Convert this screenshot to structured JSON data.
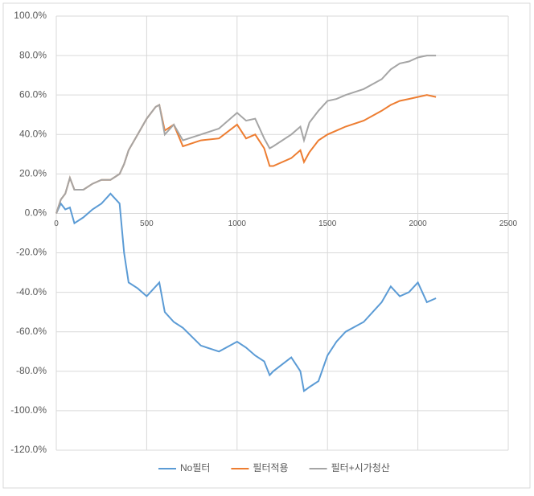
{
  "chart_data": {
    "type": "line",
    "x": [
      0,
      25,
      50,
      75,
      100,
      150,
      200,
      250,
      300,
      350,
      375,
      400,
      450,
      500,
      550,
      570,
      600,
      650,
      700,
      800,
      900,
      1000,
      1050,
      1100,
      1150,
      1180,
      1200,
      1300,
      1350,
      1370,
      1400,
      1450,
      1500,
      1550,
      1600,
      1700,
      1800,
      1850,
      1900,
      1950,
      2000,
      2050,
      2100
    ],
    "series": [
      {
        "name": "No필터",
        "color": "#5b9bd5",
        "values": [
          0,
          5,
          2,
          3,
          -5,
          -2,
          2,
          5,
          10,
          5,
          -20,
          -35,
          -38,
          -42,
          -37,
          -35,
          -50,
          -55,
          -58,
          -67,
          -70,
          -65,
          -68,
          -72,
          -75,
          -82,
          -80,
          -73,
          -80,
          -90,
          -88,
          -85,
          -72,
          -65,
          -60,
          -55,
          -45,
          -37,
          -42,
          -40,
          -35,
          -45,
          -43
        ]
      },
      {
        "name": "필터적용",
        "color": "#ed7d31",
        "values": [
          0,
          7,
          10,
          18,
          12,
          12,
          15,
          17,
          17,
          20,
          25,
          32,
          40,
          48,
          54,
          55,
          42,
          45,
          34,
          37,
          38,
          45,
          38,
          40,
          33,
          24,
          24,
          28,
          32,
          26,
          31,
          37,
          40,
          42,
          44,
          47,
          52,
          55,
          57,
          58,
          59,
          60,
          59
        ]
      },
      {
        "name": "필터+시가청산",
        "color": "#a5a5a5",
        "values": [
          0,
          7,
          10,
          18,
          12,
          12,
          15,
          17,
          17,
          20,
          25,
          32,
          40,
          48,
          54,
          55,
          40,
          45,
          37,
          40,
          43,
          51,
          47,
          48,
          38,
          33,
          34,
          40,
          44,
          37,
          46,
          52,
          57,
          58,
          60,
          63,
          68,
          73,
          76,
          77,
          79,
          80,
          80
        ]
      }
    ],
    "xlim": [
      0,
      2500
    ],
    "xticks": [
      0,
      500,
      1000,
      1500,
      2000,
      2500
    ],
    "ylim": [
      -120,
      100
    ],
    "yticks": [
      {
        "value": -120,
        "label": "-120.0%"
      },
      {
        "value": -100,
        "label": "-100.0%"
      },
      {
        "value": -80,
        "label": "-80.0%"
      },
      {
        "value": -60,
        "label": "-60.0%"
      },
      {
        "value": -40,
        "label": "-40.0%"
      },
      {
        "value": -20,
        "label": "-20.0%"
      },
      {
        "value": 0,
        "label": "0.0%"
      },
      {
        "value": 20,
        "label": "20.0%"
      },
      {
        "value": 40,
        "label": "40.0%"
      },
      {
        "value": 60,
        "label": "60.0%"
      },
      {
        "value": 80,
        "label": "80.0%"
      },
      {
        "value": 100,
        "label": "100.0%"
      }
    ],
    "grid": true,
    "legend": "bottom"
  }
}
